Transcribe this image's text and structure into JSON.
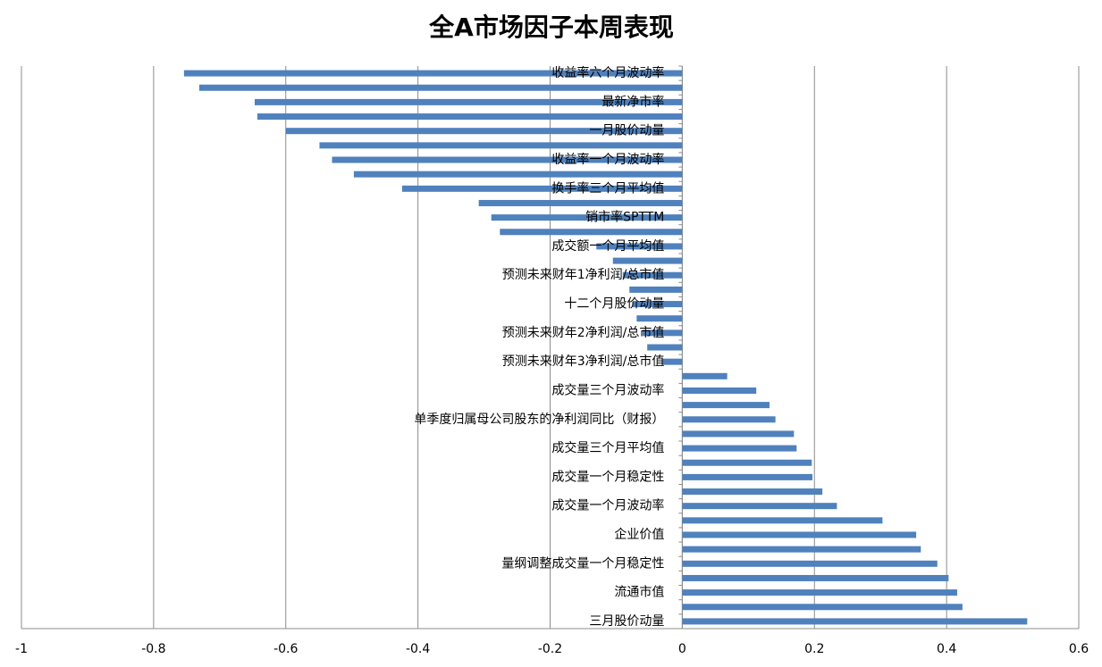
{
  "chart_data": {
    "type": "barh",
    "title": "全A市场因子本周表现",
    "categories": [
      "收益率六个月波动率",
      null,
      "最新净市率",
      null,
      "一月股价动量",
      null,
      "收益率一个月波动率",
      null,
      "换手率三个月平均值",
      null,
      "销市率SPTTM",
      null,
      "成交额一个月平均值",
      null,
      "预测未来财年1净利润/总市值",
      null,
      "十二个月股价动量",
      null,
      "预测未来财年2净利润/总市值",
      null,
      "预测未来财年3净利润/总市值",
      null,
      "成交量三个月波动率",
      null,
      "单季度归属母公司股东的净利润同比（财报）",
      null,
      "成交量三个月平均值",
      null,
      "成交量一个月稳定性",
      null,
      "成交量一个月波动率",
      null,
      "企业价值",
      null,
      "量纲调整成交量一个月稳定性",
      null,
      "流通市值",
      null,
      "三月股价动量"
    ],
    "values": [
      -0.754,
      -0.731,
      -0.647,
      -0.643,
      -0.6,
      -0.549,
      -0.53,
      -0.497,
      -0.424,
      -0.308,
      -0.289,
      -0.276,
      -0.13,
      -0.105,
      -0.09,
      -0.08,
      -0.075,
      -0.069,
      -0.06,
      -0.053,
      -0.03,
      0.068,
      0.112,
      0.132,
      0.141,
      0.169,
      0.173,
      0.196,
      0.197,
      0.212,
      0.234,
      0.303,
      0.354,
      0.361,
      0.386,
      0.403,
      0.416,
      0.424,
      0.522
    ],
    "color": "#4f81bd",
    "xlim": [
      -1,
      0.6
    ],
    "xticks": [
      -1,
      -0.8,
      -0.6,
      -0.4,
      -0.2,
      0,
      0.2,
      0.4,
      0.6
    ],
    "grid": true
  }
}
